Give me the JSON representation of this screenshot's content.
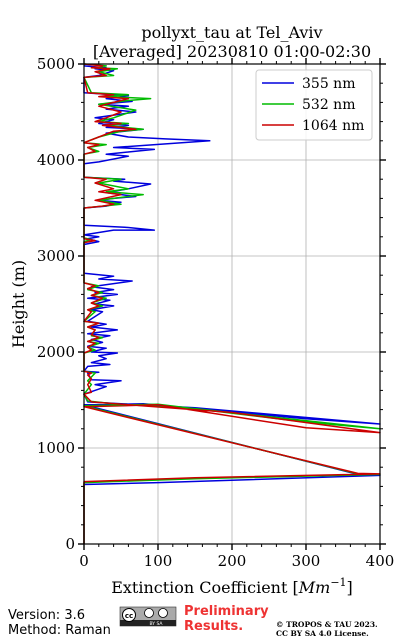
{
  "chart_data": {
    "type": "line",
    "title_line1": "pollyxt_tau at Tel_Aviv",
    "title_line2": "[Averaged] 20230810 01:00-02:30",
    "xlabel_main": "Extinction Coefficient [",
    "xlabel_unit": "Mm",
    "xlabel_exp": "−1",
    "xlabel_close": "]",
    "ylabel": "Height (m)",
    "xlim": [
      0,
      400
    ],
    "ylim": [
      0,
      5000
    ],
    "x_ticks": [
      0,
      100,
      200,
      300,
      400
    ],
    "x_tick_labels": [
      "0",
      "100",
      "200",
      "300",
      "400"
    ],
    "y_ticks": [
      0,
      1000,
      2000,
      3000,
      4000,
      5000
    ],
    "y_tick_labels": [
      "0",
      "1000",
      "2000",
      "3000",
      "4000",
      "5000"
    ],
    "grid": true,
    "legend_position": "top-right",
    "series": [
      {
        "name": "355 nm",
        "color": "#0000dd",
        "points": [
          [
            0,
            0
          ],
          [
            0,
            620
          ],
          [
            100,
            640
          ],
          [
            400,
            715
          ],
          [
            370,
            725
          ],
          [
            0,
            1450
          ],
          [
            80,
            1460
          ],
          [
            300,
            1305
          ],
          [
            400,
            1250
          ],
          [
            150,
            1420
          ],
          [
            50,
            1460
          ],
          [
            5,
            1480
          ],
          [
            0,
            1560
          ],
          [
            30,
            1640
          ],
          [
            15,
            1660
          ],
          [
            50,
            1700
          ],
          [
            10,
            1710
          ],
          [
            5,
            1780
          ],
          [
            20,
            1790
          ],
          [
            0,
            1800
          ],
          [
            5,
            1850
          ],
          [
            35,
            1870
          ],
          [
            10,
            1890
          ],
          [
            30,
            1930
          ],
          [
            20,
            1960
          ],
          [
            45,
            1990
          ],
          [
            10,
            2000
          ],
          [
            30,
            2040
          ],
          [
            5,
            2060
          ],
          [
            25,
            2100
          ],
          [
            10,
            2130
          ],
          [
            35,
            2170
          ],
          [
            5,
            2190
          ],
          [
            45,
            2230
          ],
          [
            10,
            2260
          ],
          [
            30,
            2290
          ],
          [
            5,
            2320
          ],
          [
            25,
            2420
          ],
          [
            10,
            2440
          ],
          [
            40,
            2480
          ],
          [
            15,
            2500
          ],
          [
            35,
            2540
          ],
          [
            5,
            2560
          ],
          [
            45,
            2600
          ],
          [
            15,
            2620
          ],
          [
            40,
            2650
          ],
          [
            10,
            2680
          ],
          [
            65,
            2740
          ],
          [
            20,
            2760
          ],
          [
            40,
            2790
          ],
          [
            0,
            2820
          ],
          [
            0,
            3120
          ],
          [
            20,
            3150
          ],
          [
            5,
            3180
          ],
          [
            20,
            3200
          ],
          [
            0,
            3220
          ],
          [
            40,
            3270
          ],
          [
            95,
            3270
          ],
          [
            55,
            3300
          ],
          [
            0,
            3320
          ],
          [
            0,
            3500
          ],
          [
            30,
            3520
          ],
          [
            50,
            3560
          ],
          [
            20,
            3580
          ],
          [
            40,
            3600
          ],
          [
            70,
            3620
          ],
          [
            30,
            3660
          ],
          [
            60,
            3700
          ],
          [
            90,
            3750
          ],
          [
            40,
            3780
          ],
          [
            55,
            3800
          ],
          [
            0,
            3820
          ],
          [
            0,
            3960
          ],
          [
            20,
            3980
          ],
          [
            60,
            4040
          ],
          [
            30,
            4060
          ],
          [
            95,
            4110
          ],
          [
            40,
            4130
          ],
          [
            170,
            4200
          ],
          [
            110,
            4220
          ],
          [
            60,
            4240
          ],
          [
            30,
            4280
          ],
          [
            80,
            4320
          ],
          [
            30,
            4340
          ],
          [
            60,
            4360
          ],
          [
            20,
            4380
          ],
          [
            40,
            4420
          ],
          [
            15,
            4440
          ],
          [
            70,
            4500
          ],
          [
            30,
            4530
          ],
          [
            60,
            4560
          ],
          [
            20,
            4580
          ],
          [
            65,
            4610
          ],
          [
            30,
            4640
          ],
          [
            60,
            4670
          ],
          [
            0,
            4700
          ],
          [
            0,
            4860
          ],
          [
            20,
            4880
          ],
          [
            40,
            4930
          ],
          [
            15,
            4950
          ],
          [
            30,
            4960
          ],
          [
            0,
            4980
          ]
        ]
      },
      {
        "name": "532 nm",
        "color": "#00bb00",
        "points": [
          [
            0,
            0
          ],
          [
            0,
            640
          ],
          [
            150,
            680
          ],
          [
            400,
            725
          ],
          [
            370,
            730
          ],
          [
            0,
            1440
          ],
          [
            100,
            1455
          ],
          [
            300,
            1270
          ],
          [
            400,
            1200
          ],
          [
            150,
            1410
          ],
          [
            40,
            1460
          ],
          [
            5,
            1490
          ],
          [
            0,
            1560
          ],
          [
            10,
            1660
          ],
          [
            5,
            1700
          ],
          [
            15,
            1780
          ],
          [
            0,
            1800
          ],
          [
            0,
            1990
          ],
          [
            15,
            2020
          ],
          [
            5,
            2050
          ],
          [
            20,
            2090
          ],
          [
            5,
            2110
          ],
          [
            25,
            2150
          ],
          [
            10,
            2170
          ],
          [
            15,
            2230
          ],
          [
            5,
            2260
          ],
          [
            20,
            2300
          ],
          [
            0,
            2320
          ],
          [
            15,
            2420
          ],
          [
            5,
            2440
          ],
          [
            25,
            2480
          ],
          [
            10,
            2510
          ],
          [
            30,
            2560
          ],
          [
            10,
            2590
          ],
          [
            25,
            2620
          ],
          [
            5,
            2650
          ],
          [
            20,
            2690
          ],
          [
            0,
            2720
          ],
          [
            0,
            3150
          ],
          [
            10,
            3170
          ],
          [
            0,
            3190
          ],
          [
            0,
            3500
          ],
          [
            25,
            3520
          ],
          [
            50,
            3540
          ],
          [
            20,
            3580
          ],
          [
            80,
            3640
          ],
          [
            30,
            3670
          ],
          [
            60,
            3700
          ],
          [
            20,
            3760
          ],
          [
            50,
            3800
          ],
          [
            0,
            3820
          ],
          [
            0,
            4060
          ],
          [
            20,
            4090
          ],
          [
            5,
            4130
          ],
          [
            30,
            4160
          ],
          [
            0,
            4180
          ],
          [
            20,
            4240
          ],
          [
            50,
            4300
          ],
          [
            80,
            4320
          ],
          [
            30,
            4360
          ],
          [
            60,
            4380
          ],
          [
            20,
            4400
          ],
          [
            40,
            4440
          ],
          [
            70,
            4520
          ],
          [
            20,
            4580
          ],
          [
            60,
            4620
          ],
          [
            90,
            4640
          ],
          [
            30,
            4660
          ],
          [
            60,
            4680
          ],
          [
            10,
            4700
          ],
          [
            0,
            4860
          ],
          [
            40,
            4880
          ],
          [
            20,
            4920
          ],
          [
            45,
            4950
          ],
          [
            15,
            4960
          ],
          [
            30,
            4980
          ],
          [
            0,
            5000
          ]
        ]
      },
      {
        "name": "1064 nm",
        "color": "#cc0000",
        "points": [
          [
            0,
            0
          ],
          [
            0,
            650
          ],
          [
            150,
            690
          ],
          [
            400,
            730
          ],
          [
            370,
            735
          ],
          [
            0,
            1430
          ],
          [
            100,
            1450
          ],
          [
            300,
            1210
          ],
          [
            400,
            1160
          ],
          [
            200,
            1370
          ],
          [
            60,
            1450
          ],
          [
            10,
            1480
          ],
          [
            0,
            1560
          ],
          [
            10,
            1580
          ],
          [
            5,
            1660
          ],
          [
            10,
            1720
          ],
          [
            5,
            1760
          ],
          [
            10,
            1780
          ],
          [
            0,
            1800
          ],
          [
            0,
            1990
          ],
          [
            10,
            2020
          ],
          [
            5,
            2050
          ],
          [
            15,
            2090
          ],
          [
            5,
            2110
          ],
          [
            20,
            2150
          ],
          [
            10,
            2180
          ],
          [
            15,
            2230
          ],
          [
            5,
            2260
          ],
          [
            20,
            2300
          ],
          [
            0,
            2320
          ],
          [
            10,
            2420
          ],
          [
            5,
            2440
          ],
          [
            20,
            2480
          ],
          [
            10,
            2510
          ],
          [
            25,
            2560
          ],
          [
            10,
            2590
          ],
          [
            20,
            2620
          ],
          [
            5,
            2660
          ],
          [
            15,
            2690
          ],
          [
            0,
            2720
          ],
          [
            0,
            3140
          ],
          [
            15,
            3160
          ],
          [
            0,
            3180
          ],
          [
            0,
            3500
          ],
          [
            25,
            3520
          ],
          [
            40,
            3540
          ],
          [
            15,
            3580
          ],
          [
            50,
            3640
          ],
          [
            20,
            3670
          ],
          [
            40,
            3700
          ],
          [
            15,
            3760
          ],
          [
            30,
            3800
          ],
          [
            0,
            3820
          ],
          [
            0,
            4060
          ],
          [
            15,
            4090
          ],
          [
            5,
            4130
          ],
          [
            20,
            4160
          ],
          [
            0,
            4180
          ],
          [
            20,
            4240
          ],
          [
            40,
            4300
          ],
          [
            70,
            4320
          ],
          [
            25,
            4360
          ],
          [
            50,
            4380
          ],
          [
            15,
            4400
          ],
          [
            30,
            4440
          ],
          [
            50,
            4500
          ],
          [
            20,
            4560
          ],
          [
            40,
            4600
          ],
          [
            60,
            4640
          ],
          [
            20,
            4660
          ],
          [
            40,
            4680
          ],
          [
            5,
            4700
          ],
          [
            0,
            4860
          ],
          [
            30,
            4880
          ],
          [
            15,
            4920
          ],
          [
            35,
            4950
          ],
          [
            10,
            4960
          ],
          [
            25,
            4980
          ],
          [
            0,
            5000
          ]
        ]
      }
    ]
  },
  "footer": {
    "version": "Version: 3.6",
    "method": "Method: Raman",
    "license_badge": "cc",
    "badge_sub": "BY  SA",
    "preliminary_line1": "Preliminary",
    "preliminary_line2": "Results.",
    "copyright_line1": "© TROPOS & TAU 2023.",
    "copyright_line2": "CC BY SA 4.0 License.",
    "preliminary_color": "#ee3333"
  }
}
